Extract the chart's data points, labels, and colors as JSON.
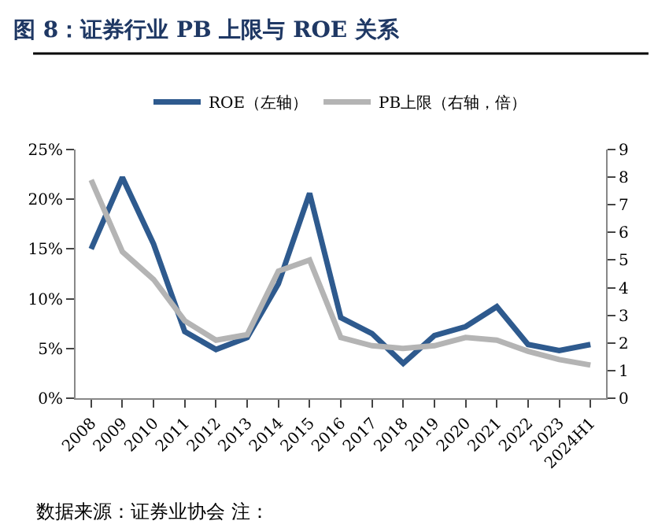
{
  "chart_data": {
    "type": "line",
    "title": "图 8：证券行业 PB 上限与 ROE 关系",
    "categories": [
      "2008",
      "2009",
      "2010",
      "2011",
      "2012",
      "2013",
      "2014",
      "2015",
      "2016",
      "2017",
      "2018",
      "2019",
      "2020",
      "2021",
      "2022",
      "2023",
      "2024H1"
    ],
    "series": [
      {
        "name": "ROE（左轴）",
        "color": "#2e5a8e",
        "values": [
          15.0,
          22.2,
          15.5,
          6.7,
          4.9,
          6.1,
          11.5,
          20.6,
          8.1,
          6.5,
          3.5,
          6.3,
          7.2,
          9.2,
          5.4,
          4.8,
          5.4
        ]
      },
      {
        "name": "PB上限（右轴，倍）",
        "color": "#b4b4b4",
        "axis": "y2",
        "values": [
          7.9,
          5.3,
          4.3,
          2.8,
          2.1,
          2.3,
          4.6,
          5.0,
          2.2,
          1.9,
          1.8,
          1.9,
          2.2,
          2.1,
          1.7,
          1.4,
          1.2
        ]
      }
    ],
    "ylim": [
      0,
      25
    ],
    "yticks": [
      {
        "value": 0,
        "label": "0%"
      },
      {
        "value": 5,
        "label": "5%"
      },
      {
        "value": 10,
        "label": "10%"
      },
      {
        "value": 15,
        "label": "15%"
      },
      {
        "value": 20,
        "label": "20%"
      },
      {
        "value": 25,
        "label": "25%"
      }
    ],
    "y2lim": [
      0,
      9
    ],
    "y2ticks": [
      0,
      1,
      2,
      3,
      4,
      5,
      6,
      7,
      8,
      9
    ],
    "legend": "top",
    "marker": "none",
    "line_style": "solid",
    "annotations": [
      "数据来源：证券业协会 注："
    ]
  }
}
